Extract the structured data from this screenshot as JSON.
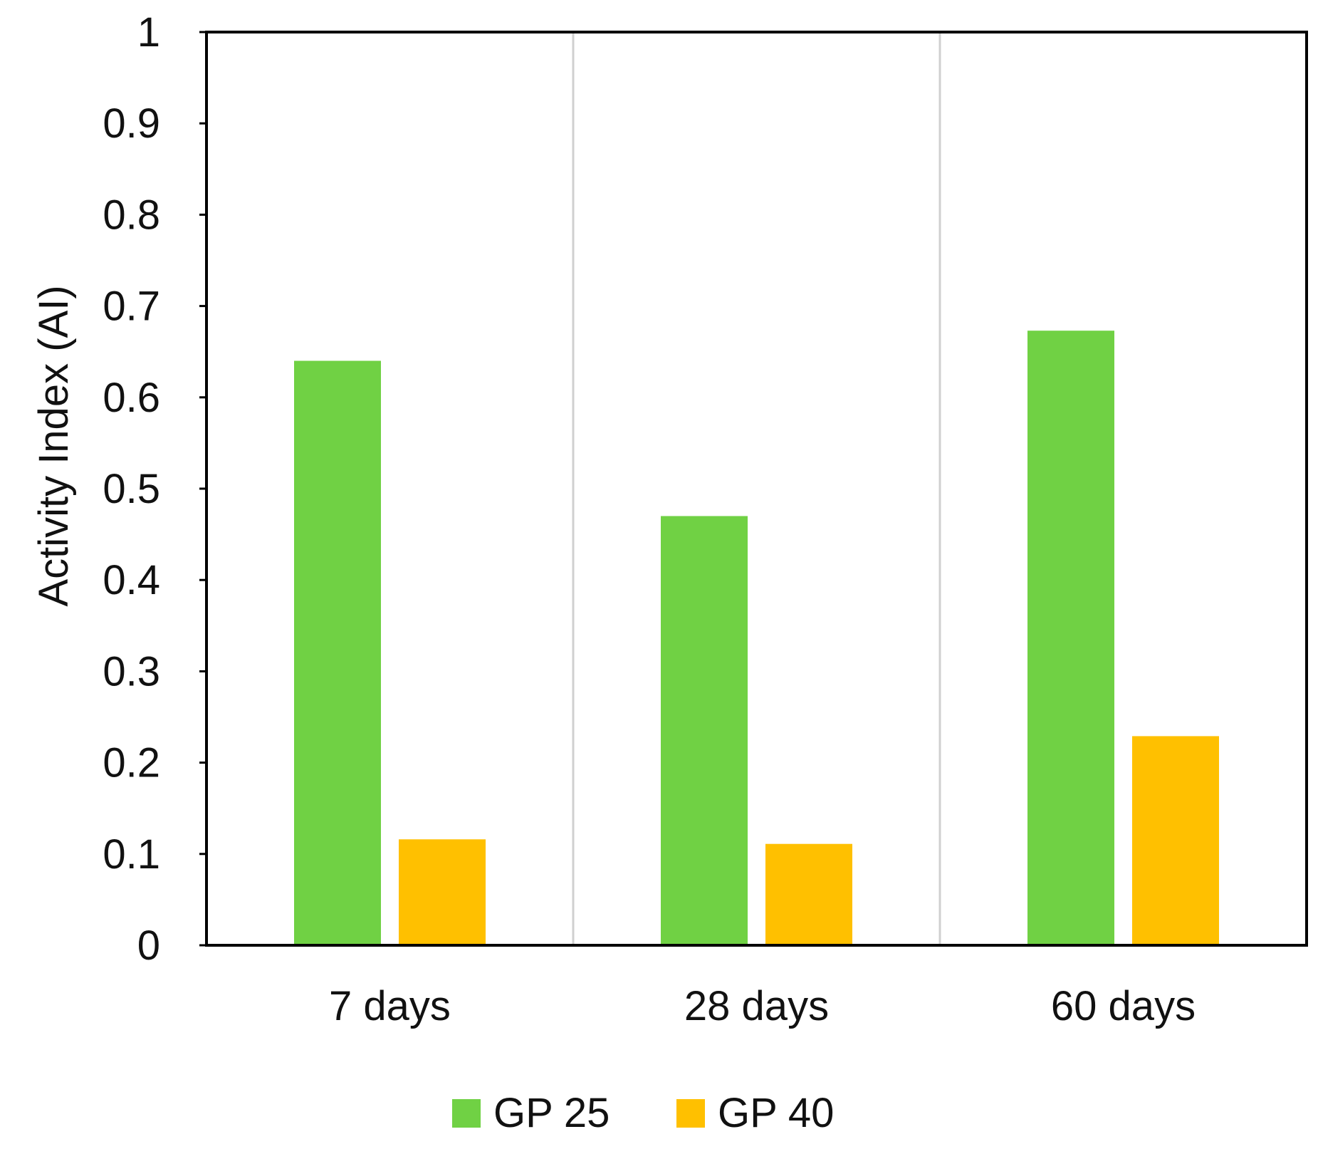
{
  "chart_data": {
    "type": "bar",
    "title": "",
    "xlabel": "",
    "ylabel": "Activity Index (AI)",
    "categories": [
      "7 days",
      "28 days",
      "60 days"
    ],
    "series": [
      {
        "name": "GP 25",
        "color": "#70d144",
        "values": [
          0.64,
          0.47,
          0.673
        ]
      },
      {
        "name": "GP 40",
        "color": "#ffc000",
        "values": [
          0.116,
          0.111,
          0.229
        ]
      }
    ],
    "ylim": [
      0,
      1
    ],
    "yticks": [
      "0",
      "0.1",
      "0.2",
      "0.3",
      "0.4",
      "0.5",
      "0.6",
      "0.7",
      "0.8",
      "0.9",
      "1"
    ],
    "grid": "vertical separators between categories",
    "legend": "bottom-center"
  }
}
